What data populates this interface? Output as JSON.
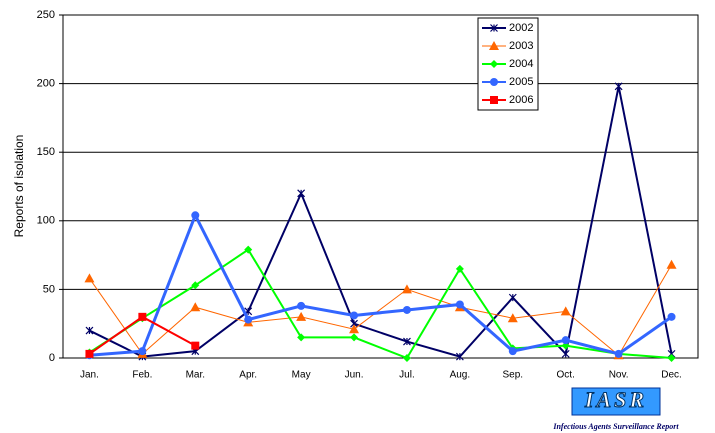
{
  "chart_data": {
    "type": "line",
    "ylabel": "Reports of isolation",
    "categories": [
      "Jan.",
      "Feb.",
      "Mar.",
      "Apr.",
      "May",
      "Jun.",
      "Jul.",
      "Aug.",
      "Sep.",
      "Oct.",
      "Nov.",
      "Dec."
    ],
    "series": [
      {
        "name": "2002",
        "color": "#000066",
        "marker": "asterisk",
        "width": 2,
        "values": [
          20,
          1,
          5,
          34,
          120,
          25,
          12,
          1,
          44,
          3,
          198,
          3
        ]
      },
      {
        "name": "2003",
        "color": "#ff6600",
        "marker": "triangle",
        "width": 1,
        "values": [
          58,
          3,
          37,
          26,
          30,
          21,
          50,
          37,
          29,
          34,
          2,
          68
        ]
      },
      {
        "name": "2004",
        "color": "#00ff00",
        "marker": "diamond",
        "width": 2,
        "values": [
          4,
          29,
          53,
          79,
          15,
          15,
          0,
          65,
          7,
          9,
          3,
          0
        ]
      },
      {
        "name": "2005",
        "color": "#3366ff",
        "marker": "circle",
        "width": 3,
        "values": [
          2,
          5,
          104,
          28,
          38,
          31,
          35,
          39,
          5,
          13,
          3,
          30
        ]
      },
      {
        "name": "2006",
        "color": "#ff0000",
        "marker": "square",
        "width": 2,
        "values": [
          3,
          30,
          9,
          null,
          null,
          null,
          null,
          null,
          null,
          null,
          null,
          null
        ]
      }
    ],
    "ylim": [
      0,
      250
    ],
    "yticks": [
      0,
      50,
      100,
      150,
      200,
      250
    ],
    "grid": true,
    "legend": "upper right"
  },
  "logo": {
    "title": "IASR",
    "subtitle": "Infectious Agents Surveillance Report"
  }
}
